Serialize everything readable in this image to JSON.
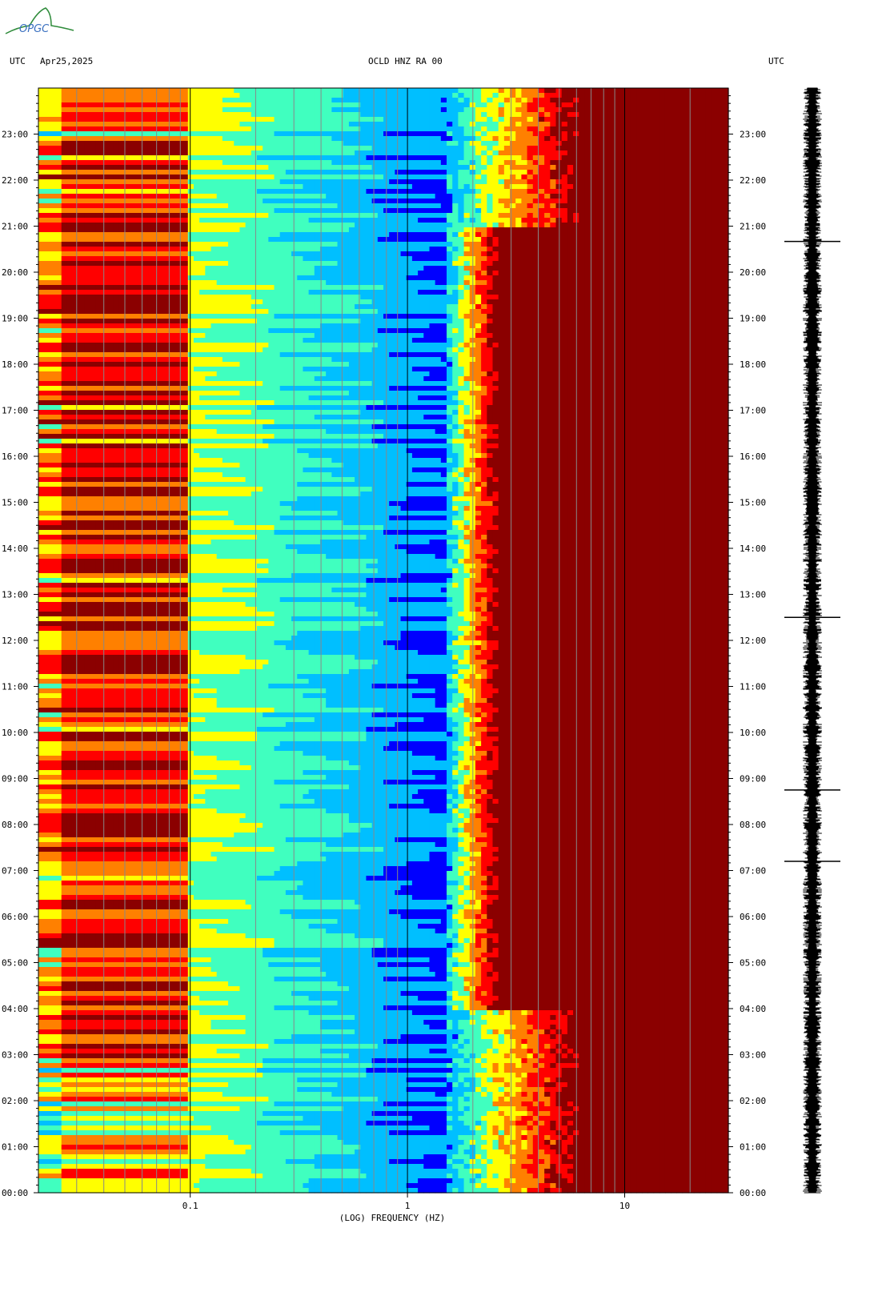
{
  "header": {
    "utc_left": "UTC",
    "date": "Apr25,2025",
    "title": "OCLD HNZ RA 00",
    "utc_right": "UTC"
  },
  "logo": {
    "text": "OPGC",
    "name": "opgc-logo"
  },
  "chart_data": {
    "type": "heatmap",
    "title": "OCLD HNZ RA 00",
    "xlabel": "(LOG) FREQUENCY (HZ)",
    "ylabel": "",
    "x_scale": "log",
    "xlim": [
      0.02,
      30
    ],
    "x_ticks": [
      {
        "value": 0.1,
        "label": "0.1"
      },
      {
        "value": 1,
        "label": "1"
      },
      {
        "value": 10,
        "label": "10"
      }
    ],
    "ylim_hours": [
      0,
      24
    ],
    "y_ticks": [
      "00:00",
      "01:00",
      "02:00",
      "03:00",
      "04:00",
      "05:00",
      "06:00",
      "07:00",
      "08:00",
      "09:00",
      "10:00",
      "11:00",
      "12:00",
      "13:00",
      "14:00",
      "15:00",
      "16:00",
      "17:00",
      "18:00",
      "19:00",
      "20:00",
      "21:00",
      "22:00",
      "23:00"
    ],
    "colormap": [
      "#00008b",
      "#0000ff",
      "#00bfff",
      "#40ffbf",
      "#ffff00",
      "#ff8000",
      "#ff0000",
      "#8b0000"
    ],
    "side_trace": "seismogram",
    "events": [
      {
        "time": "07:12"
      },
      {
        "time": "08:45"
      },
      {
        "time": "12:30"
      },
      {
        "time": "20:40"
      }
    ]
  }
}
